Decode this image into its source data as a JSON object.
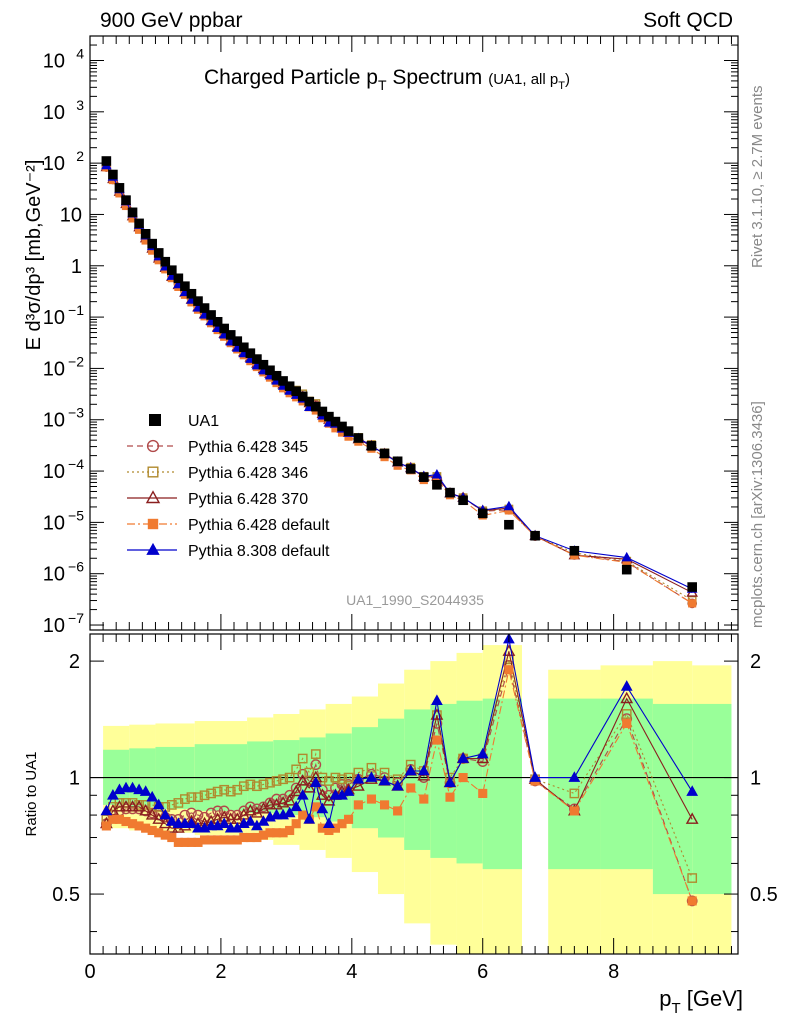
{
  "header": {
    "left": "900 GeV ppbar",
    "right": "Soft QCD"
  },
  "side_labels": {
    "rivet": "Rivet 3.1.10, ≥ 2.7M events",
    "mcplots": "mcplots.cern.ch [arXiv:1306.3436]"
  },
  "chart_data": {
    "type": "scatter",
    "title": "Charged Particle p_T Spectrum",
    "title_parts": {
      "main": "Charged Particle p",
      "main_sub": "T",
      "main_after": " Spectrum",
      "small": "(UA1, all p",
      "small_sub": "T",
      "small_after": ")"
    },
    "analysis_id": "UA1_1990_S2044935",
    "xlabel": {
      "base": "p",
      "sub": "T",
      "after": " [GeV]"
    },
    "ylabel_top": "E d³σ/dp³ [mb,GeV⁻²]",
    "ylabel_bottom": "Ratio to UA1",
    "xlim": [
      0,
      9.9
    ],
    "ylim_top": [
      8e-08,
      30000
    ],
    "ylog_top": true,
    "ylim_bottom": [
      0.35,
      2.35
    ],
    "ylog_bottom": true,
    "x_ticks": [
      "0",
      "2",
      "4",
      "6",
      "8"
    ],
    "y_ticks_top": [
      {
        "v": 10000,
        "b": "10",
        "e": "4"
      },
      {
        "v": 1000,
        "b": "10",
        "e": "3"
      },
      {
        "v": 100,
        "b": "10",
        "e": "2"
      },
      {
        "v": 10,
        "b": "10",
        "e": ""
      },
      {
        "v": 1,
        "b": "1",
        "e": ""
      },
      {
        "v": 0.1,
        "b": "10",
        "e": "−1"
      },
      {
        "v": 0.01,
        "b": "10",
        "e": "−2"
      },
      {
        "v": 0.001,
        "b": "10",
        "e": "−3"
      },
      {
        "v": 0.0001,
        "b": "10",
        "e": "−4"
      },
      {
        "v": 1e-05,
        "b": "10",
        "e": "−5"
      },
      {
        "v": 1e-06,
        "b": "10",
        "e": "−6"
      },
      {
        "v": 1e-07,
        "b": "10",
        "e": "−7"
      }
    ],
    "y_ticks_bottom": [
      "0.5",
      "1",
      "2"
    ],
    "legend_position": "lower-left",
    "data": {
      "name": "UA1",
      "color": "#000000",
      "x": [
        0.25,
        0.35,
        0.45,
        0.55,
        0.65,
        0.75,
        0.85,
        0.95,
        1.05,
        1.15,
        1.25,
        1.35,
        1.45,
        1.55,
        1.65,
        1.75,
        1.85,
        1.95,
        2.05,
        2.15,
        2.25,
        2.35,
        2.45,
        2.55,
        2.65,
        2.75,
        2.85,
        2.95,
        3.05,
        3.15,
        3.25,
        3.35,
        3.45,
        3.55,
        3.65,
        3.75,
        3.85,
        3.95,
        4.1,
        4.3,
        4.5,
        4.7,
        4.9,
        5.1,
        5.3,
        5.5,
        5.7,
        6.0,
        6.4,
        6.8,
        7.4,
        8.2,
        9.2
      ],
      "y": [
        110,
        60,
        33,
        19,
        11,
        6.7,
        4.2,
        2.7,
        1.78,
        1.2,
        0.82,
        0.57,
        0.4,
        0.285,
        0.205,
        0.15,
        0.11,
        0.081,
        0.06,
        0.045,
        0.034,
        0.0258,
        0.0198,
        0.0152,
        0.0118,
        0.0092,
        0.0072,
        0.0057,
        0.0045,
        0.0036,
        0.00285,
        0.00225,
        0.0018,
        0.00145,
        0.00115,
        0.00092,
        0.00074,
        0.0006,
        0.00044,
        0.00031,
        0.00022,
        0.000155,
        0.00011,
        7.6e-05,
        5.4e-05,
        3.8e-05,
        2.7e-05,
        1.5e-05,
        9e-06,
        5.5e-06,
        2.8e-06,
        1.2e-06,
        5.5e-07
      ]
    },
    "band_edges": [
      0.2,
      0.6,
      1.0,
      1.6,
      2.4,
      2.8,
      3.2,
      3.6,
      4.0,
      4.4,
      4.8,
      5.2,
      5.6,
      6.0,
      6.6,
      7.0,
      7.8,
      8.6,
      9.2,
      9.8
    ],
    "band_stat": [
      [
        0.85,
        1.18
      ],
      [
        0.84,
        1.19
      ],
      [
        0.83,
        1.2
      ],
      [
        0.82,
        1.22
      ],
      [
        0.81,
        1.24
      ],
      [
        0.8,
        1.25
      ],
      [
        0.79,
        1.27
      ],
      [
        0.77,
        1.3
      ],
      [
        0.74,
        1.35
      ],
      [
        0.7,
        1.42
      ],
      [
        0.65,
        1.5
      ],
      [
        0.62,
        1.55
      ],
      [
        0.6,
        1.58
      ],
      [
        0.58,
        1.6
      ],
      [
        0.58,
        1.6
      ],
      [
        0.58,
        1.6
      ],
      [
        0.58,
        1.6
      ],
      [
        0.5,
        1.55
      ],
      [
        0.5,
        1.55
      ]
    ],
    "band_total": [
      [
        0.74,
        1.36
      ],
      [
        0.73,
        1.37
      ],
      [
        0.72,
        1.38
      ],
      [
        0.71,
        1.4
      ],
      [
        0.69,
        1.43
      ],
      [
        0.67,
        1.46
      ],
      [
        0.65,
        1.5
      ],
      [
        0.62,
        1.55
      ],
      [
        0.57,
        1.62
      ],
      [
        0.5,
        1.75
      ],
      [
        0.42,
        1.9
      ],
      [
        0.37,
        2.0
      ],
      [
        0.35,
        2.1
      ],
      [
        0.35,
        2.2
      ],
      [
        0.35,
        2.2
      ],
      [
        0.35,
        1.9
      ],
      [
        0.35,
        1.95
      ],
      [
        0.35,
        2.0
      ],
      [
        0.35,
        1.95
      ]
    ],
    "band_gap": [
      6.6,
      7.0
    ],
    "series": [
      {
        "name": "Pythia 6.428 345",
        "color": "#b04a4a",
        "marker": "circle-open",
        "dash": "6,4",
        "ratio": [
          0.76,
          0.8,
          0.82,
          0.83,
          0.83,
          0.83,
          0.82,
          0.81,
          0.8,
          0.79,
          0.78,
          0.78,
          0.8,
          0.81,
          0.8,
          0.79,
          0.81,
          0.82,
          0.82,
          0.8,
          0.8,
          0.82,
          0.84,
          0.83,
          0.84,
          0.86,
          0.88,
          0.88,
          0.9,
          0.94,
          1.02,
          0.98,
          1.08,
          0.93,
          0.9,
          0.94,
          0.96,
          0.96,
          0.99,
          1.02,
          1.0,
          0.97,
          1.05,
          1.0,
          1.38,
          0.97,
          1.12,
          1.1,
          1.95,
          0.98,
          0.83,
          1.42,
          0.48
        ]
      },
      {
        "name": "Pythia 6.428 346",
        "color": "#b08a2e",
        "marker": "square-open",
        "dash": "2,3",
        "ratio": [
          0.78,
          0.84,
          0.86,
          0.86,
          0.86,
          0.85,
          0.85,
          0.85,
          0.84,
          0.84,
          0.85,
          0.86,
          0.88,
          0.89,
          0.89,
          0.9,
          0.91,
          0.92,
          0.93,
          0.92,
          0.93,
          0.95,
          0.96,
          0.95,
          0.96,
          0.97,
          0.98,
          0.99,
          1.0,
          1.05,
          1.12,
          1.03,
          1.15,
          1.0,
          0.98,
          1.0,
          0.99,
          1.0,
          1.03,
          1.06,
          1.03,
          0.99,
          1.08,
          1.04,
          1.45,
          1.0,
          1.12,
          1.12,
          2.02,
          0.99,
          0.91,
          1.46,
          0.55
        ]
      },
      {
        "name": "Pythia 6.428 370",
        "color": "#8a1f1f",
        "marker": "triangle-open",
        "dash": "",
        "ratio": [
          0.76,
          0.82,
          0.84,
          0.84,
          0.84,
          0.84,
          0.82,
          0.8,
          0.78,
          0.76,
          0.74,
          0.74,
          0.75,
          0.77,
          0.76,
          0.76,
          0.77,
          0.78,
          0.79,
          0.78,
          0.78,
          0.8,
          0.82,
          0.81,
          0.83,
          0.85,
          0.85,
          0.86,
          0.87,
          0.92,
          0.98,
          0.94,
          1.0,
          0.9,
          0.87,
          0.9,
          0.92,
          0.93,
          0.95,
          0.99,
          0.98,
          0.95,
          1.04,
          1.01,
          1.45,
          0.97,
          1.12,
          1.12,
          2.12,
          0.99,
          0.82,
          1.6,
          0.78
        ]
      },
      {
        "name": "Pythia 6.428 default",
        "color": "#f07a30",
        "marker": "square-filled",
        "dash": "8,3,2,3",
        "ratio": [
          0.75,
          0.78,
          0.78,
          0.77,
          0.76,
          0.75,
          0.74,
          0.73,
          0.72,
          0.71,
          0.7,
          0.68,
          0.68,
          0.68,
          0.68,
          0.69,
          0.69,
          0.69,
          0.69,
          0.69,
          0.69,
          0.7,
          0.7,
          0.7,
          0.71,
          0.72,
          0.72,
          0.72,
          0.73,
          0.76,
          0.8,
          0.78,
          0.84,
          0.74,
          0.73,
          0.74,
          0.76,
          0.78,
          0.85,
          0.88,
          0.85,
          0.82,
          0.94,
          0.88,
          1.25,
          0.89,
          1.0,
          0.91,
          1.9,
          0.98,
          0.82,
          1.38,
          0.48
        ]
      },
      {
        "name": "Pythia 8.308 default",
        "color": "#0000cc",
        "marker": "triangle-filled",
        "dash": "",
        "ratio": [
          0.82,
          0.9,
          0.93,
          0.94,
          0.94,
          0.93,
          0.92,
          0.89,
          0.85,
          0.8,
          0.77,
          0.76,
          0.76,
          0.76,
          0.74,
          0.74,
          0.75,
          0.75,
          0.76,
          0.74,
          0.74,
          0.76,
          0.77,
          0.75,
          0.77,
          0.79,
          0.8,
          0.8,
          0.81,
          0.84,
          0.9,
          0.78,
          0.97,
          0.83,
          0.76,
          0.9,
          0.9,
          0.92,
          0.99,
          1.0,
          0.98,
          0.95,
          1.04,
          1.04,
          1.58,
          0.97,
          1.12,
          1.15,
          2.28,
          1.0,
          1.0,
          1.72,
          0.92
        ]
      }
    ]
  }
}
